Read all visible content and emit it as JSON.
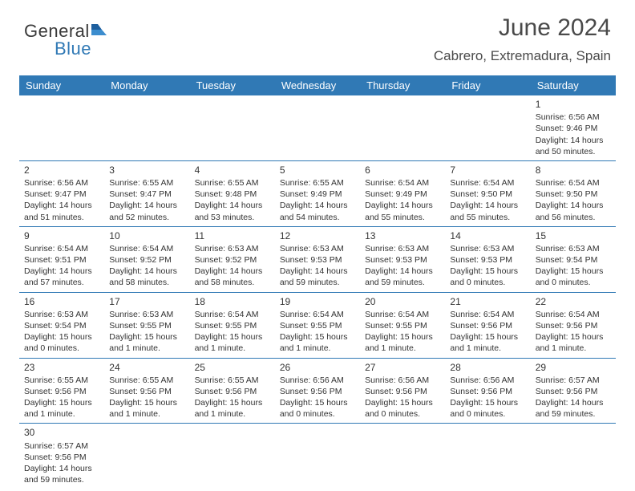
{
  "logo": {
    "text1": "General",
    "text2": "Blue"
  },
  "title": "June 2024",
  "location": "Cabrero, Extremadura, Spain",
  "headers": [
    "Sunday",
    "Monday",
    "Tuesday",
    "Wednesday",
    "Thursday",
    "Friday",
    "Saturday"
  ],
  "colors": {
    "header_bg": "#3079b5",
    "header_fg": "#ffffff",
    "row_border": "#3079b5",
    "text": "#333333",
    "logo_gray": "#3a3a3a",
    "logo_blue": "#3079b5"
  },
  "weeks": [
    [
      null,
      null,
      null,
      null,
      null,
      null,
      {
        "n": "1",
        "sr": "Sunrise: 6:56 AM",
        "ss": "Sunset: 9:46 PM",
        "d1": "Daylight: 14 hours",
        "d2": "and 50 minutes."
      }
    ],
    [
      {
        "n": "2",
        "sr": "Sunrise: 6:56 AM",
        "ss": "Sunset: 9:47 PM",
        "d1": "Daylight: 14 hours",
        "d2": "and 51 minutes."
      },
      {
        "n": "3",
        "sr": "Sunrise: 6:55 AM",
        "ss": "Sunset: 9:47 PM",
        "d1": "Daylight: 14 hours",
        "d2": "and 52 minutes."
      },
      {
        "n": "4",
        "sr": "Sunrise: 6:55 AM",
        "ss": "Sunset: 9:48 PM",
        "d1": "Daylight: 14 hours",
        "d2": "and 53 minutes."
      },
      {
        "n": "5",
        "sr": "Sunrise: 6:55 AM",
        "ss": "Sunset: 9:49 PM",
        "d1": "Daylight: 14 hours",
        "d2": "and 54 minutes."
      },
      {
        "n": "6",
        "sr": "Sunrise: 6:54 AM",
        "ss": "Sunset: 9:49 PM",
        "d1": "Daylight: 14 hours",
        "d2": "and 55 minutes."
      },
      {
        "n": "7",
        "sr": "Sunrise: 6:54 AM",
        "ss": "Sunset: 9:50 PM",
        "d1": "Daylight: 14 hours",
        "d2": "and 55 minutes."
      },
      {
        "n": "8",
        "sr": "Sunrise: 6:54 AM",
        "ss": "Sunset: 9:50 PM",
        "d1": "Daylight: 14 hours",
        "d2": "and 56 minutes."
      }
    ],
    [
      {
        "n": "9",
        "sr": "Sunrise: 6:54 AM",
        "ss": "Sunset: 9:51 PM",
        "d1": "Daylight: 14 hours",
        "d2": "and 57 minutes."
      },
      {
        "n": "10",
        "sr": "Sunrise: 6:54 AM",
        "ss": "Sunset: 9:52 PM",
        "d1": "Daylight: 14 hours",
        "d2": "and 58 minutes."
      },
      {
        "n": "11",
        "sr": "Sunrise: 6:53 AM",
        "ss": "Sunset: 9:52 PM",
        "d1": "Daylight: 14 hours",
        "d2": "and 58 minutes."
      },
      {
        "n": "12",
        "sr": "Sunrise: 6:53 AM",
        "ss": "Sunset: 9:53 PM",
        "d1": "Daylight: 14 hours",
        "d2": "and 59 minutes."
      },
      {
        "n": "13",
        "sr": "Sunrise: 6:53 AM",
        "ss": "Sunset: 9:53 PM",
        "d1": "Daylight: 14 hours",
        "d2": "and 59 minutes."
      },
      {
        "n": "14",
        "sr": "Sunrise: 6:53 AM",
        "ss": "Sunset: 9:53 PM",
        "d1": "Daylight: 15 hours",
        "d2": "and 0 minutes."
      },
      {
        "n": "15",
        "sr": "Sunrise: 6:53 AM",
        "ss": "Sunset: 9:54 PM",
        "d1": "Daylight: 15 hours",
        "d2": "and 0 minutes."
      }
    ],
    [
      {
        "n": "16",
        "sr": "Sunrise: 6:53 AM",
        "ss": "Sunset: 9:54 PM",
        "d1": "Daylight: 15 hours",
        "d2": "and 0 minutes."
      },
      {
        "n": "17",
        "sr": "Sunrise: 6:53 AM",
        "ss": "Sunset: 9:55 PM",
        "d1": "Daylight: 15 hours",
        "d2": "and 1 minute."
      },
      {
        "n": "18",
        "sr": "Sunrise: 6:54 AM",
        "ss": "Sunset: 9:55 PM",
        "d1": "Daylight: 15 hours",
        "d2": "and 1 minute."
      },
      {
        "n": "19",
        "sr": "Sunrise: 6:54 AM",
        "ss": "Sunset: 9:55 PM",
        "d1": "Daylight: 15 hours",
        "d2": "and 1 minute."
      },
      {
        "n": "20",
        "sr": "Sunrise: 6:54 AM",
        "ss": "Sunset: 9:55 PM",
        "d1": "Daylight: 15 hours",
        "d2": "and 1 minute."
      },
      {
        "n": "21",
        "sr": "Sunrise: 6:54 AM",
        "ss": "Sunset: 9:56 PM",
        "d1": "Daylight: 15 hours",
        "d2": "and 1 minute."
      },
      {
        "n": "22",
        "sr": "Sunrise: 6:54 AM",
        "ss": "Sunset: 9:56 PM",
        "d1": "Daylight: 15 hours",
        "d2": "and 1 minute."
      }
    ],
    [
      {
        "n": "23",
        "sr": "Sunrise: 6:55 AM",
        "ss": "Sunset: 9:56 PM",
        "d1": "Daylight: 15 hours",
        "d2": "and 1 minute."
      },
      {
        "n": "24",
        "sr": "Sunrise: 6:55 AM",
        "ss": "Sunset: 9:56 PM",
        "d1": "Daylight: 15 hours",
        "d2": "and 1 minute."
      },
      {
        "n": "25",
        "sr": "Sunrise: 6:55 AM",
        "ss": "Sunset: 9:56 PM",
        "d1": "Daylight: 15 hours",
        "d2": "and 1 minute."
      },
      {
        "n": "26",
        "sr": "Sunrise: 6:56 AM",
        "ss": "Sunset: 9:56 PM",
        "d1": "Daylight: 15 hours",
        "d2": "and 0 minutes."
      },
      {
        "n": "27",
        "sr": "Sunrise: 6:56 AM",
        "ss": "Sunset: 9:56 PM",
        "d1": "Daylight: 15 hours",
        "d2": "and 0 minutes."
      },
      {
        "n": "28",
        "sr": "Sunrise: 6:56 AM",
        "ss": "Sunset: 9:56 PM",
        "d1": "Daylight: 15 hours",
        "d2": "and 0 minutes."
      },
      {
        "n": "29",
        "sr": "Sunrise: 6:57 AM",
        "ss": "Sunset: 9:56 PM",
        "d1": "Daylight: 14 hours",
        "d2": "and 59 minutes."
      }
    ],
    [
      {
        "n": "30",
        "sr": "Sunrise: 6:57 AM",
        "ss": "Sunset: 9:56 PM",
        "d1": "Daylight: 14 hours",
        "d2": "and 59 minutes."
      },
      null,
      null,
      null,
      null,
      null,
      null
    ]
  ]
}
